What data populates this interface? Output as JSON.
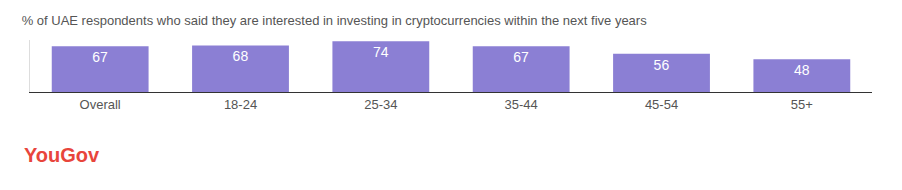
{
  "chart_data": {
    "type": "bar",
    "title": "% of UAE respondents who said they are interested in investing in cryptocurrencies within the next five years",
    "categories": [
      "Overall",
      "18-24",
      "25-34",
      "35-44",
      "45-54",
      "55+"
    ],
    "values": [
      67,
      68,
      74,
      67,
      56,
      48
    ],
    "color": "#8b7fd4",
    "ylim": [
      0,
      76
    ],
    "yticks": [],
    "grid": false,
    "data_labels": true,
    "tick_labels": "x",
    "annotations": [
      "YouGov"
    ]
  }
}
